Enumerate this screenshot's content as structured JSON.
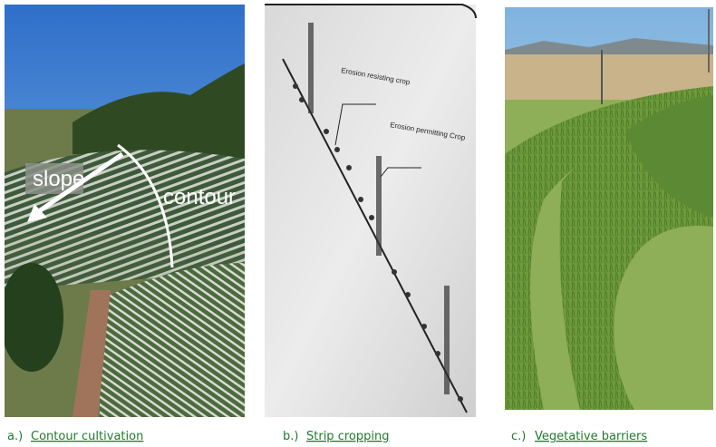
{
  "panels": [
    {
      "prefix": "a.)",
      "caption": "Contour cultivation",
      "labels": [
        "slope",
        "contour"
      ]
    },
    {
      "prefix": "b.)",
      "caption": "Strip cropping",
      "labels": [
        "Erosion resisting crop",
        "Erosion permitting Crop"
      ]
    },
    {
      "prefix": "c.)",
      "caption": "Vegetative barriers"
    }
  ]
}
